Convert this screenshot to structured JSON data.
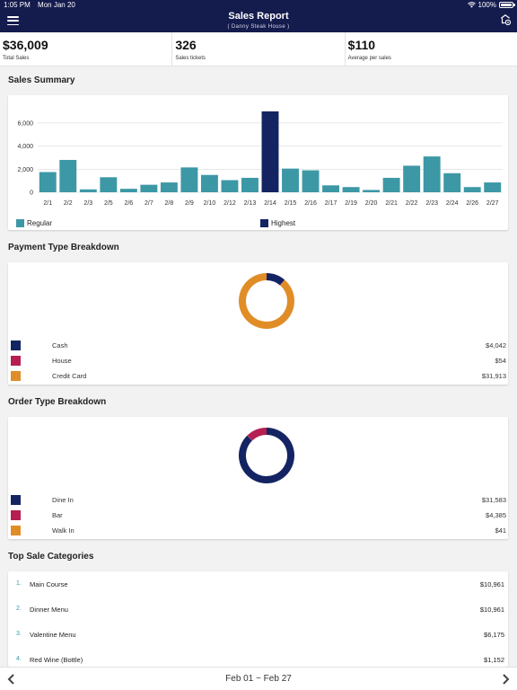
{
  "status_bar": {
    "time": "1:05 PM",
    "date": "Mon Jan 20",
    "battery": "100%"
  },
  "header": {
    "title": "Sales Report",
    "subtitle": "( Danny Steak House )"
  },
  "stats": [
    {
      "value": "$36,009",
      "label": "Total Sales"
    },
    {
      "value": "326",
      "label": "Sales tickets"
    },
    {
      "value": "$110",
      "label": "Average per sales"
    }
  ],
  "sales_summary": {
    "title": "Sales Summary",
    "legend": {
      "regular": "Regular",
      "highest": "Highest"
    }
  },
  "chart_data": {
    "type": "bar",
    "categories": [
      "2/1",
      "2/2",
      "2/3",
      "2/5",
      "2/6",
      "2/7",
      "2/8",
      "2/9",
      "2/10",
      "2/12",
      "2/13",
      "2/14",
      "2/15",
      "2/16",
      "2/17",
      "2/19",
      "2/20",
      "2/21",
      "2/22",
      "2/23",
      "2/24",
      "2/26",
      "2/27"
    ],
    "values": [
      1750,
      2800,
      250,
      1300,
      300,
      650,
      850,
      2150,
      1500,
      1050,
      1250,
      7000,
      2050,
      1900,
      600,
      450,
      200,
      1250,
      2300,
      3100,
      1650,
      450,
      850
    ],
    "highlight_index": 11,
    "yticks": [
      "0",
      "2,000",
      "4,000",
      "6,000"
    ],
    "ylim": [
      0,
      7000
    ],
    "colors": {
      "regular": "#3d98a6",
      "highest": "#142463"
    }
  },
  "payment_breakdown": {
    "title": "Payment Type Breakdown",
    "items": [
      {
        "label": "Cash",
        "value": "$4,042",
        "amount": 4042,
        "color": "#142463"
      },
      {
        "label": "House",
        "value": "$54",
        "amount": 54,
        "color": "#b51f52"
      },
      {
        "label": "Credit Card",
        "value": "$31,913",
        "amount": 31913,
        "color": "#e08d28"
      }
    ]
  },
  "order_breakdown": {
    "title": "Order Type Breakdown",
    "items": [
      {
        "label": "Dine In",
        "value": "$31,583",
        "amount": 31583,
        "color": "#142463"
      },
      {
        "label": "Bar",
        "value": "$4,385",
        "amount": 4385,
        "color": "#b51f52"
      },
      {
        "label": "Walk In",
        "value": "$41",
        "amount": 41,
        "color": "#e08d28"
      }
    ]
  },
  "top_categories": {
    "title": "Top Sale Categories",
    "items": [
      {
        "rank": "1.",
        "name": "Main Course",
        "value": "$10,961"
      },
      {
        "rank": "2.",
        "name": "Dinner Menu",
        "value": "$10,961"
      },
      {
        "rank": "3.",
        "name": "Valentine Menu",
        "value": "$6,175"
      },
      {
        "rank": "4.",
        "name": "Red Wine (Bottle)",
        "value": "$1,152"
      }
    ]
  },
  "footer": {
    "range": "Feb 01 ~ Feb 27"
  }
}
